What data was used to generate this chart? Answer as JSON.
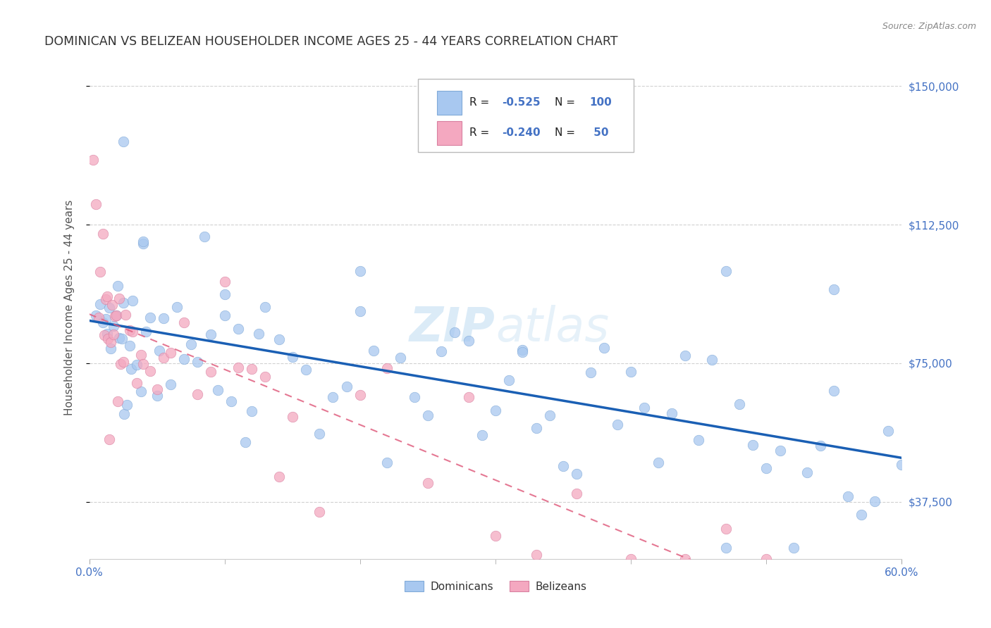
{
  "title": "DOMINICAN VS BELIZEAN HOUSEHOLDER INCOME AGES 25 - 44 YEARS CORRELATION CHART",
  "source": "Source: ZipAtlas.com",
  "xlabel_ticks_show": [
    "0.0%",
    "60.0%"
  ],
  "xlabel_ticks_pos": [
    0.0,
    60.0
  ],
  "xlabel_minor_pos": [
    10.0,
    20.0,
    30.0,
    40.0,
    50.0
  ],
  "ylabel_ticks": [
    "$37,500",
    "$75,000",
    "$112,500",
    "$150,000"
  ],
  "ylabel_vals": [
    37500,
    75000,
    112500,
    150000
  ],
  "ylabel_label": "Householder Income Ages 25 - 44 years",
  "xmin": 0.0,
  "xmax": 60.0,
  "ymin": 22000,
  "ymax": 158000,
  "watermark": "ZIPatlas",
  "dominican_color": "#a8c8f0",
  "belizean_color": "#f4a8c0",
  "trend_dominican_color": "#1a5fb4",
  "trend_belizean_color": "#e06080",
  "legend_r1": "-0.525",
  "legend_n1": "100",
  "legend_r2": "-0.240",
  "legend_n2": " 50",
  "legend1_label": "Dominicans",
  "legend2_label": "Belizeans",
  "title_color": "#333333",
  "source_color": "#888888",
  "ylabel_color": "#4472c4",
  "axis_label_color": "#555555",
  "grid_color": "#cccccc"
}
